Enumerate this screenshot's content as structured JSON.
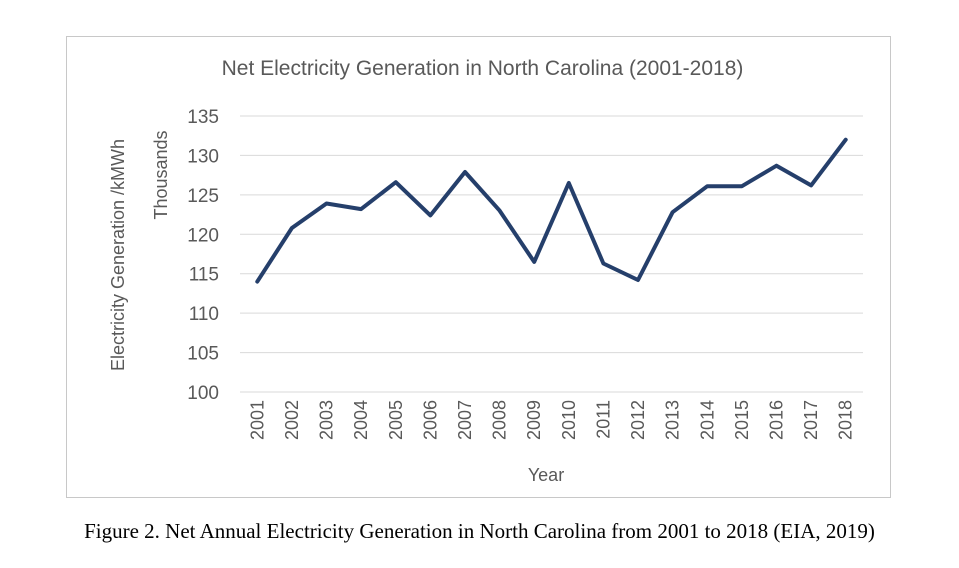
{
  "caption": "Figure 2. Net Annual Electricity Generation in North Carolina from 2001 to 2018 (EIA, 2019)",
  "chart_data": {
    "type": "line",
    "title": "Net Electricity Generation in North Carolina (2001-2018)",
    "xlabel": "Year",
    "ylabel": "Electricity Generation /kMWh",
    "y_unit_label": "Thousands",
    "ylim": [
      100,
      135
    ],
    "y_ticks": [
      100,
      105,
      110,
      115,
      120,
      125,
      130,
      135
    ],
    "grid": true,
    "legend": "none",
    "line_color": "#253f6b",
    "categories": [
      "2001",
      "2002",
      "2003",
      "2004",
      "2005",
      "2006",
      "2007",
      "2008",
      "2009",
      "2010",
      "2011",
      "2012",
      "2013",
      "2014",
      "2015",
      "2016",
      "2017",
      "2018"
    ],
    "series": [
      {
        "values": [
          114.0,
          120.8,
          123.9,
          123.2,
          126.6,
          122.4,
          127.9,
          123.0,
          116.5,
          126.5,
          116.3,
          114.2,
          122.8,
          126.1,
          126.1,
          128.7,
          126.2,
          132.0
        ]
      }
    ]
  }
}
